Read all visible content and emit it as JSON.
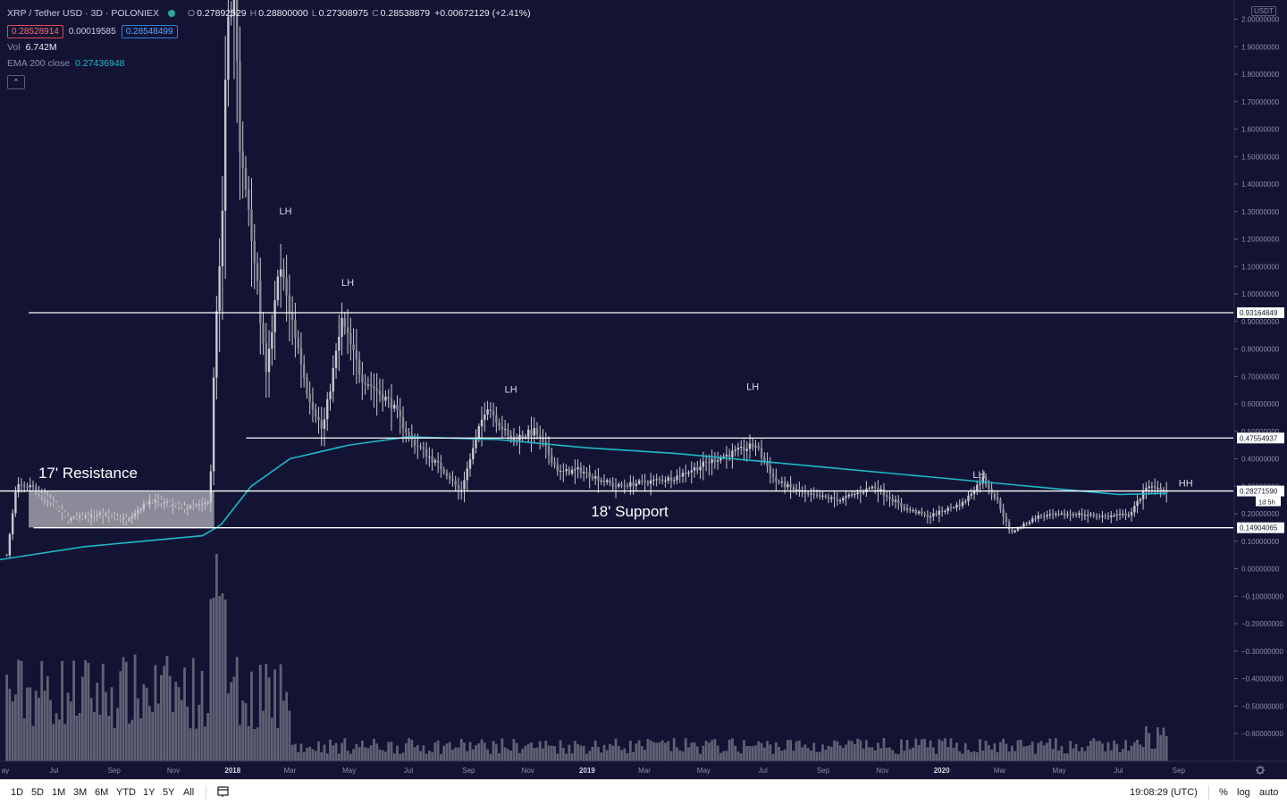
{
  "header": {
    "symbol": "XRP / Tether USD · 3D · POLONIEX",
    "ohlc": [
      {
        "key": "O",
        "value": "0.27892529"
      },
      {
        "key": "H",
        "value": "0.28800000"
      },
      {
        "key": "L",
        "value": "0.27308975"
      },
      {
        "key": "C",
        "value": "0.28538879"
      }
    ],
    "change": "+0.00672129 (+2.41%)",
    "bid": "0.28528914",
    "spread": "0.00019585",
    "ask": "0.28548499",
    "vol_label": "Vol",
    "vol_value": "6.742M",
    "ema_label": "EMA 200 close",
    "ema_value": "0.27436948",
    "collapse_glyph": "⌃"
  },
  "price_axis": {
    "currency": "USDT",
    "ticks": [
      "2.00000000",
      "1.90000000",
      "1.80000000",
      "1.70000000",
      "1.60000000",
      "1.50000000",
      "1.40000000",
      "1.30000000",
      "1.20000000",
      "1.10000000",
      "1.00000000",
      "0.90000000",
      "0.80000000",
      "0.70000000",
      "0.60000000",
      "0.50000000",
      "0.40000000",
      "0.30000000",
      "0.20000000",
      "0.10000000",
      "0.00000000",
      "−0.10000000",
      "−0.20000000",
      "−0.30000000",
      "−0.40000000",
      "−0.50000000",
      "−0.60000000"
    ],
    "tick_values": [
      2.0,
      1.9,
      1.8,
      1.7,
      1.6,
      1.5,
      1.4,
      1.3,
      1.2,
      1.1,
      1.0,
      0.9,
      0.8,
      0.7,
      0.6,
      0.5,
      0.4,
      0.3,
      0.2,
      0.1,
      0.0,
      -0.1,
      -0.2,
      -0.3,
      -0.4,
      -0.5,
      -0.6
    ],
    "level_labels": [
      {
        "value": 0.93164849,
        "text": "0.93164849"
      },
      {
        "value": 0.47554937,
        "text": "0.47554937"
      },
      {
        "value": 0.2827159,
        "text": "0.28271590"
      },
      {
        "value": 0.14904065,
        "text": "0.14904065"
      }
    ],
    "countdown": "1d 5h"
  },
  "time_axis": {
    "labels": [
      "ay",
      "Jul",
      "Sep",
      "Nov",
      "2018",
      "Mar",
      "May",
      "Jul",
      "Sep",
      "Nov",
      "2019",
      "Mar",
      "May",
      "Jul",
      "Sep",
      "Nov",
      "2020",
      "Mar",
      "May",
      "Jul",
      "Sep"
    ],
    "settings_icon": "gear-icon"
  },
  "chart_data": {
    "type": "candlestick",
    "title": "XRP / Tether USD · 3D · POLONIEX",
    "ylabel": "USDT",
    "ylim": [
      -0.6,
      2.0
    ],
    "indicator": "EMA 200 close",
    "price_path": [
      [
        "2017-05-15",
        0.05
      ],
      [
        "2017-05-25",
        0.3
      ],
      [
        "2017-06-10",
        0.3
      ],
      [
        "2017-07-01",
        0.24
      ],
      [
        "2017-07-16",
        0.18
      ],
      [
        "2017-08-20",
        0.2
      ],
      [
        "2017-09-15",
        0.18
      ],
      [
        "2017-10-10",
        0.25
      ],
      [
        "2017-11-15",
        0.22
      ],
      [
        "2017-12-10",
        0.24
      ],
      [
        "2017-12-15",
        0.8
      ],
      [
        "2017-12-22",
        1.2
      ],
      [
        "2017-12-28",
        2.0
      ],
      [
        "2018-01-05",
        2.1
      ],
      [
        "2018-01-10",
        1.5
      ],
      [
        "2018-01-20",
        1.3
      ],
      [
        "2018-02-06",
        0.7
      ],
      [
        "2018-02-20",
        1.1
      ],
      [
        "2018-03-05",
        0.9
      ],
      [
        "2018-03-20",
        0.65
      ],
      [
        "2018-04-05",
        0.5
      ],
      [
        "2018-04-25",
        0.9
      ],
      [
        "2018-05-15",
        0.7
      ],
      [
        "2018-06-15",
        0.6
      ],
      [
        "2018-07-05",
        0.47
      ],
      [
        "2018-08-10",
        0.35
      ],
      [
        "2018-08-25",
        0.28
      ],
      [
        "2018-09-21",
        0.6
      ],
      [
        "2018-10-15",
        0.47
      ],
      [
        "2018-11-10",
        0.5
      ],
      [
        "2018-12-05",
        0.35
      ],
      [
        "2018-12-25",
        0.36
      ],
      [
        "2019-02-01",
        0.3
      ],
      [
        "2019-04-01",
        0.33
      ],
      [
        "2019-05-15",
        0.4
      ],
      [
        "2019-06-25",
        0.45
      ],
      [
        "2019-07-15",
        0.32
      ],
      [
        "2019-08-15",
        0.27
      ],
      [
        "2019-09-20",
        0.25
      ],
      [
        "2019-10-25",
        0.3
      ],
      [
        "2019-11-25",
        0.22
      ],
      [
        "2019-12-20",
        0.19
      ],
      [
        "2020-01-25",
        0.24
      ],
      [
        "2020-02-14",
        0.33
      ],
      [
        "2020-03-01",
        0.24
      ],
      [
        "2020-03-13",
        0.13
      ],
      [
        "2020-04-10",
        0.19
      ],
      [
        "2020-05-20",
        0.2
      ],
      [
        "2020-06-20",
        0.19
      ],
      [
        "2020-07-15",
        0.2
      ],
      [
        "2020-08-01",
        0.3
      ],
      [
        "2020-08-14",
        0.29
      ],
      [
        "2020-08-20",
        0.285
      ]
    ],
    "ema_path": [
      [
        "2017-05-01",
        0.03
      ],
      [
        "2017-08-01",
        0.08
      ],
      [
        "2017-12-01",
        0.12
      ],
      [
        "2017-12-20",
        0.16
      ],
      [
        "2018-01-20",
        0.3
      ],
      [
        "2018-03-01",
        0.4
      ],
      [
        "2018-05-01",
        0.45
      ],
      [
        "2018-07-01",
        0.48
      ],
      [
        "2018-10-01",
        0.47
      ],
      [
        "2019-01-01",
        0.44
      ],
      [
        "2019-04-01",
        0.42
      ],
      [
        "2019-07-01",
        0.39
      ],
      [
        "2019-10-01",
        0.36
      ],
      [
        "2020-01-01",
        0.33
      ],
      [
        "2020-04-01",
        0.3
      ],
      [
        "2020-07-01",
        0.27
      ],
      [
        "2020-08-20",
        0.274
      ]
    ],
    "horizontal_levels": [
      {
        "value": 0.93164849,
        "from": "2017-06-05",
        "to": "2020-09-20"
      },
      {
        "value": 0.47554937,
        "from": "2018-01-15",
        "to": "2020-09-20"
      },
      {
        "value": 0.2827159,
        "from": "2017-05-01",
        "to": "2020-09-20"
      },
      {
        "value": 0.14904065,
        "from": "2017-06-10",
        "to": "2020-09-20"
      }
    ],
    "resistance_box": {
      "from": "2017-06-05",
      "to": "2017-12-13",
      "low": 0.15,
      "high": 0.28
    },
    "annotations": [
      {
        "text": "17' Resistance",
        "date": "2017-06-15",
        "value": 0.33,
        "size": "large"
      },
      {
        "text": "18' Support",
        "date": "2019-01-05",
        "value": 0.19,
        "size": "large"
      },
      {
        "text": "LH",
        "date": "2018-02-18",
        "value": 1.29,
        "size": "small"
      },
      {
        "text": "LH",
        "date": "2018-04-23",
        "value": 1.03,
        "size": "small"
      },
      {
        "text": "LH",
        "date": "2018-10-08",
        "value": 0.64,
        "size": "small"
      },
      {
        "text": "LH",
        "date": "2019-06-14",
        "value": 0.65,
        "size": "small"
      },
      {
        "text": "LH",
        "date": "2020-02-02",
        "value": 0.33,
        "size": "small"
      },
      {
        "text": "HH",
        "date": "2020-09-01",
        "value": 0.3,
        "size": "small"
      }
    ],
    "volume_peak_date": "2017-12-15"
  },
  "bottom_bar": {
    "timeframes": [
      "1D",
      "5D",
      "1M",
      "3M",
      "6M",
      "YTD",
      "1Y",
      "5Y",
      "All"
    ],
    "compare_icon": "compare-icon",
    "clock": "19:08:29 (UTC)",
    "percent": "%",
    "log": "log",
    "auto": "auto"
  },
  "colors": {
    "background": "#131434",
    "candle": "#c8c8d0",
    "ema": "#1fb8c8",
    "levels": "#ffffff",
    "box": "#b8b8c0"
  }
}
